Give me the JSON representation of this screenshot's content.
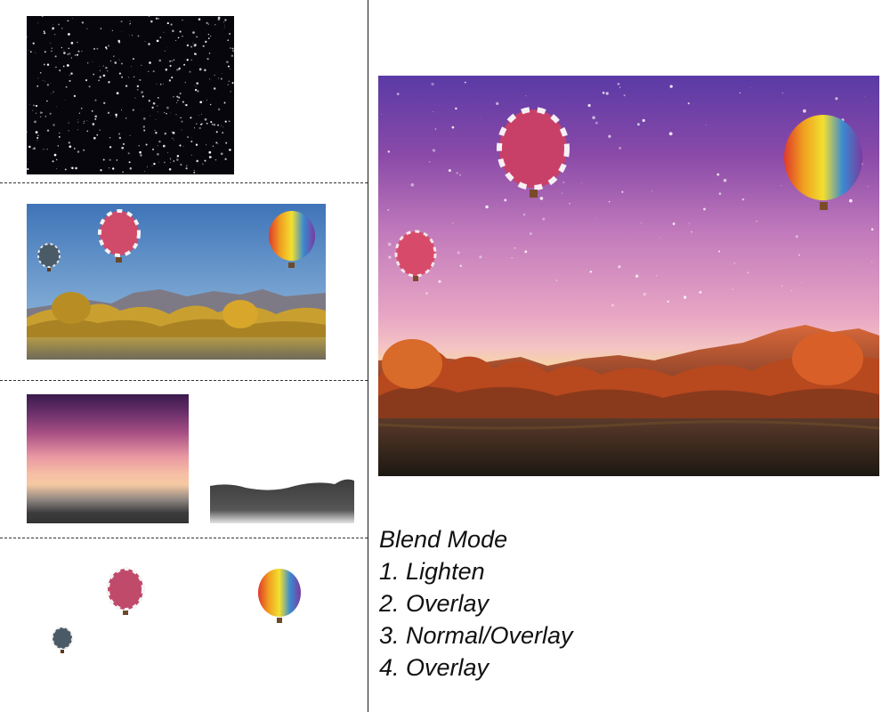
{
  "legend": {
    "title": "Blend Mode",
    "items": [
      "1. Lighten",
      "2. Overlay",
      "3. Normal/Overlay",
      "4. Overlay"
    ]
  },
  "colors": {
    "divider": "#1a1a1a",
    "text": "#111111",
    "night_sky": "#06060c",
    "sky_blue": "#4a7fc0",
    "foliage_gold": "#c9a030",
    "gradient_purple": "#3a1a4c",
    "gradient_pink": "#e896a2",
    "gradient_peach": "#f7bfa5",
    "sunset_orange": "#c85a28"
  }
}
